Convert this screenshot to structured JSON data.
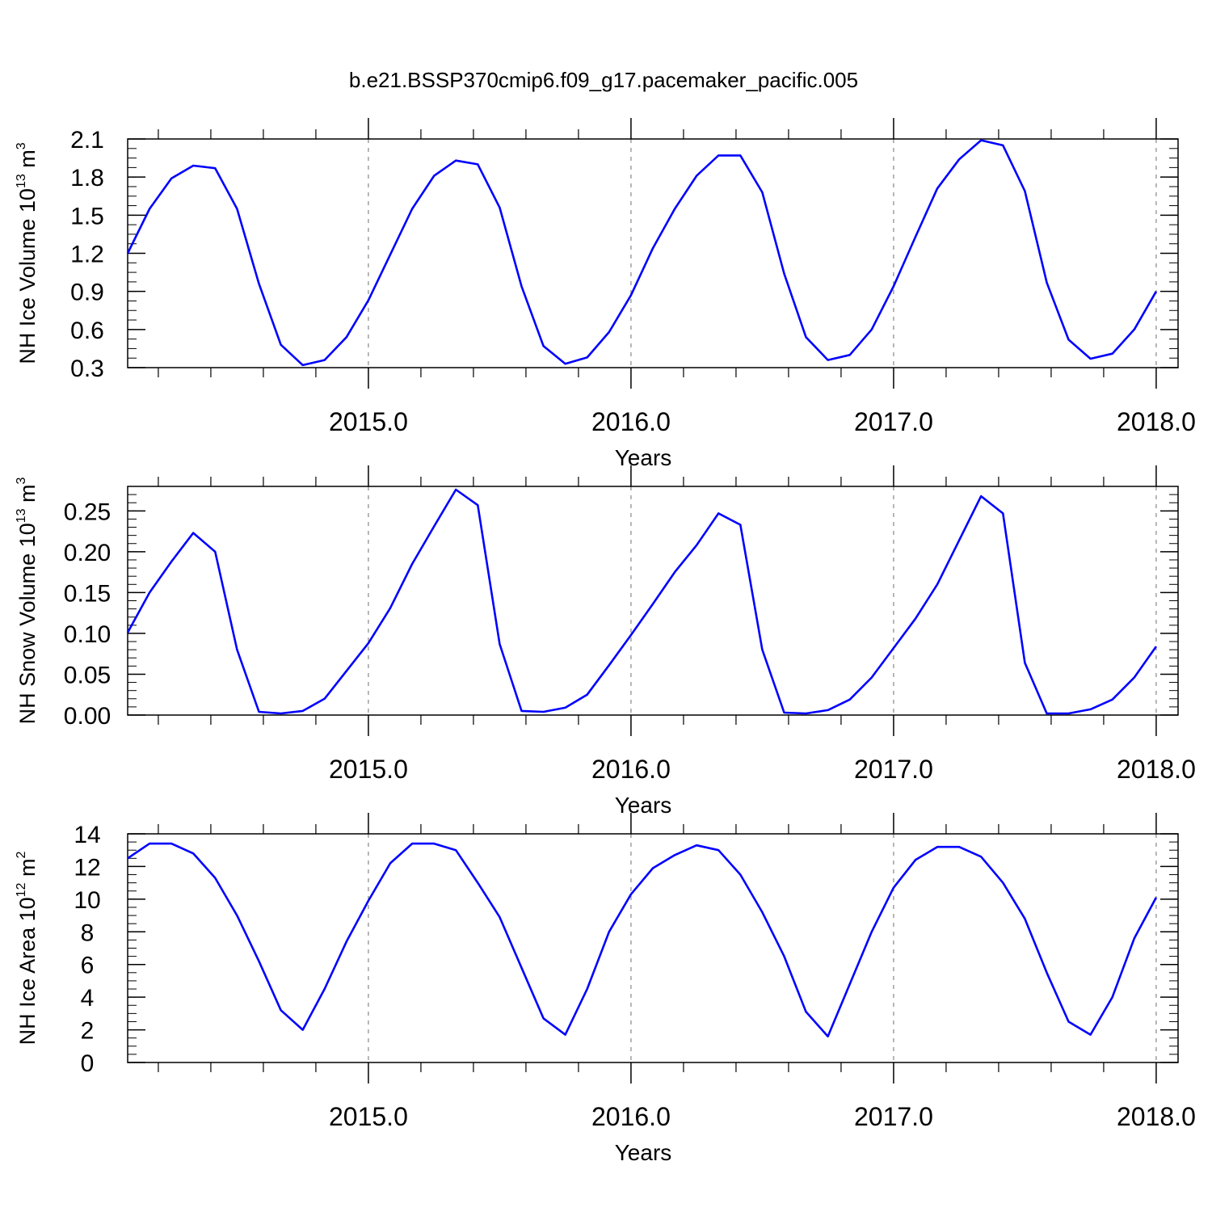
{
  "title": "b.e21.BSSP370cmip6.f09_g17.pacemaker_pacific.005",
  "colors": {
    "series": "#0000ff",
    "axis": "#000000",
    "grid": "#888888"
  },
  "chart_data": [
    {
      "type": "line",
      "ylabel": {
        "main": "NH Ice Volume 10",
        "exp": "13",
        "unit": " m",
        "unitExp": "3"
      },
      "xlabel": "Years",
      "xlim": [
        2014.0833,
        2018.0833
      ],
      "ylim": [
        0.3,
        2.1
      ],
      "yticks": [
        0.3,
        0.6,
        0.9,
        1.2,
        1.5,
        1.8,
        2.1
      ],
      "yticklabels": [
        "0.3",
        "0.6",
        "0.9",
        "1.2",
        "1.5",
        "1.8",
        "2.1"
      ],
      "yminor": 0.075,
      "xticks": [
        2015,
        2016,
        2017,
        2018
      ],
      "xticklabels": [
        "2015.0",
        "2016.0",
        "2017.0",
        "2018.0"
      ],
      "grid": "vertical dashed at major x ticks",
      "x_start": 2014.0833,
      "x_step": 0.08333,
      "values": [
        1.2,
        1.55,
        1.79,
        1.89,
        1.87,
        1.55,
        0.96,
        0.48,
        0.32,
        0.36,
        0.54,
        0.83,
        1.19,
        1.55,
        1.81,
        1.93,
        1.9,
        1.56,
        0.94,
        0.47,
        0.33,
        0.38,
        0.58,
        0.87,
        1.24,
        1.55,
        1.81,
        1.97,
        1.97,
        1.68,
        1.04,
        0.54,
        0.36,
        0.4,
        0.6,
        0.94,
        1.33,
        1.71,
        1.94,
        2.09,
        2.05,
        1.69,
        0.97,
        0.52,
        0.37,
        0.41,
        0.6,
        0.9
      ]
    },
    {
      "type": "line",
      "ylabel": {
        "main": "NH Snow Volume 10",
        "exp": "13",
        "unit": " m",
        "unitExp": "3"
      },
      "xlabel": "Years",
      "xlim": [
        2014.0833,
        2018.0833
      ],
      "ylim": [
        0.0,
        0.28
      ],
      "yticks": [
        0.0,
        0.05,
        0.1,
        0.15,
        0.2,
        0.25
      ],
      "yticklabels": [
        "0.00",
        "0.05",
        "0.10",
        "0.15",
        "0.20",
        "0.25"
      ],
      "yminor": 0.01,
      "xticks": [
        2015,
        2016,
        2017,
        2018
      ],
      "xticklabels": [
        "2015.0",
        "2016.0",
        "2017.0",
        "2018.0"
      ],
      "grid": "vertical dashed at major x ticks",
      "x_start": 2014.0833,
      "x_step": 0.08333,
      "values": [
        0.101,
        0.15,
        0.188,
        0.223,
        0.2,
        0.08,
        0.004,
        0.002,
        0.005,
        0.02,
        0.054,
        0.088,
        0.131,
        0.185,
        0.231,
        0.276,
        0.257,
        0.087,
        0.005,
        0.004,
        0.009,
        0.025,
        0.061,
        0.098,
        0.136,
        0.175,
        0.208,
        0.247,
        0.233,
        0.08,
        0.003,
        0.002,
        0.006,
        0.019,
        0.046,
        0.082,
        0.118,
        0.16,
        0.214,
        0.268,
        0.247,
        0.064,
        0.002,
        0.002,
        0.007,
        0.019,
        0.046,
        0.084
      ]
    },
    {
      "type": "line",
      "ylabel": {
        "main": "NH Ice Area 10",
        "exp": "12",
        "unit": " m",
        "unitExp": "2"
      },
      "xlabel": "Years",
      "xlim": [
        2014.0833,
        2018.0833
      ],
      "ylim": [
        0,
        14
      ],
      "yticks": [
        0,
        2,
        4,
        6,
        8,
        10,
        12,
        14
      ],
      "yticklabels": [
        "0",
        "2",
        "4",
        "6",
        "8",
        "10",
        "12",
        "14"
      ],
      "yminor": 0.5,
      "xticks": [
        2015,
        2016,
        2017,
        2018
      ],
      "xticklabels": [
        "2015.0",
        "2016.0",
        "2017.0",
        "2018.0"
      ],
      "grid": "vertical dashed at major x ticks",
      "x_start": 2014.0833,
      "x_step": 0.08333,
      "values": [
        12.5,
        13.4,
        13.4,
        12.8,
        11.3,
        9.0,
        6.2,
        3.2,
        2.0,
        4.5,
        7.4,
        9.9,
        12.2,
        13.4,
        13.4,
        13.0,
        11.0,
        8.9,
        5.8,
        2.7,
        1.7,
        4.5,
        8.0,
        10.3,
        11.9,
        12.7,
        13.3,
        13.0,
        11.5,
        9.2,
        6.5,
        3.1,
        1.6,
        4.8,
        8.0,
        10.7,
        12.4,
        13.2,
        13.2,
        12.6,
        11.0,
        8.8,
        5.5,
        2.5,
        1.7,
        4.0,
        7.6,
        10.1
      ]
    }
  ]
}
